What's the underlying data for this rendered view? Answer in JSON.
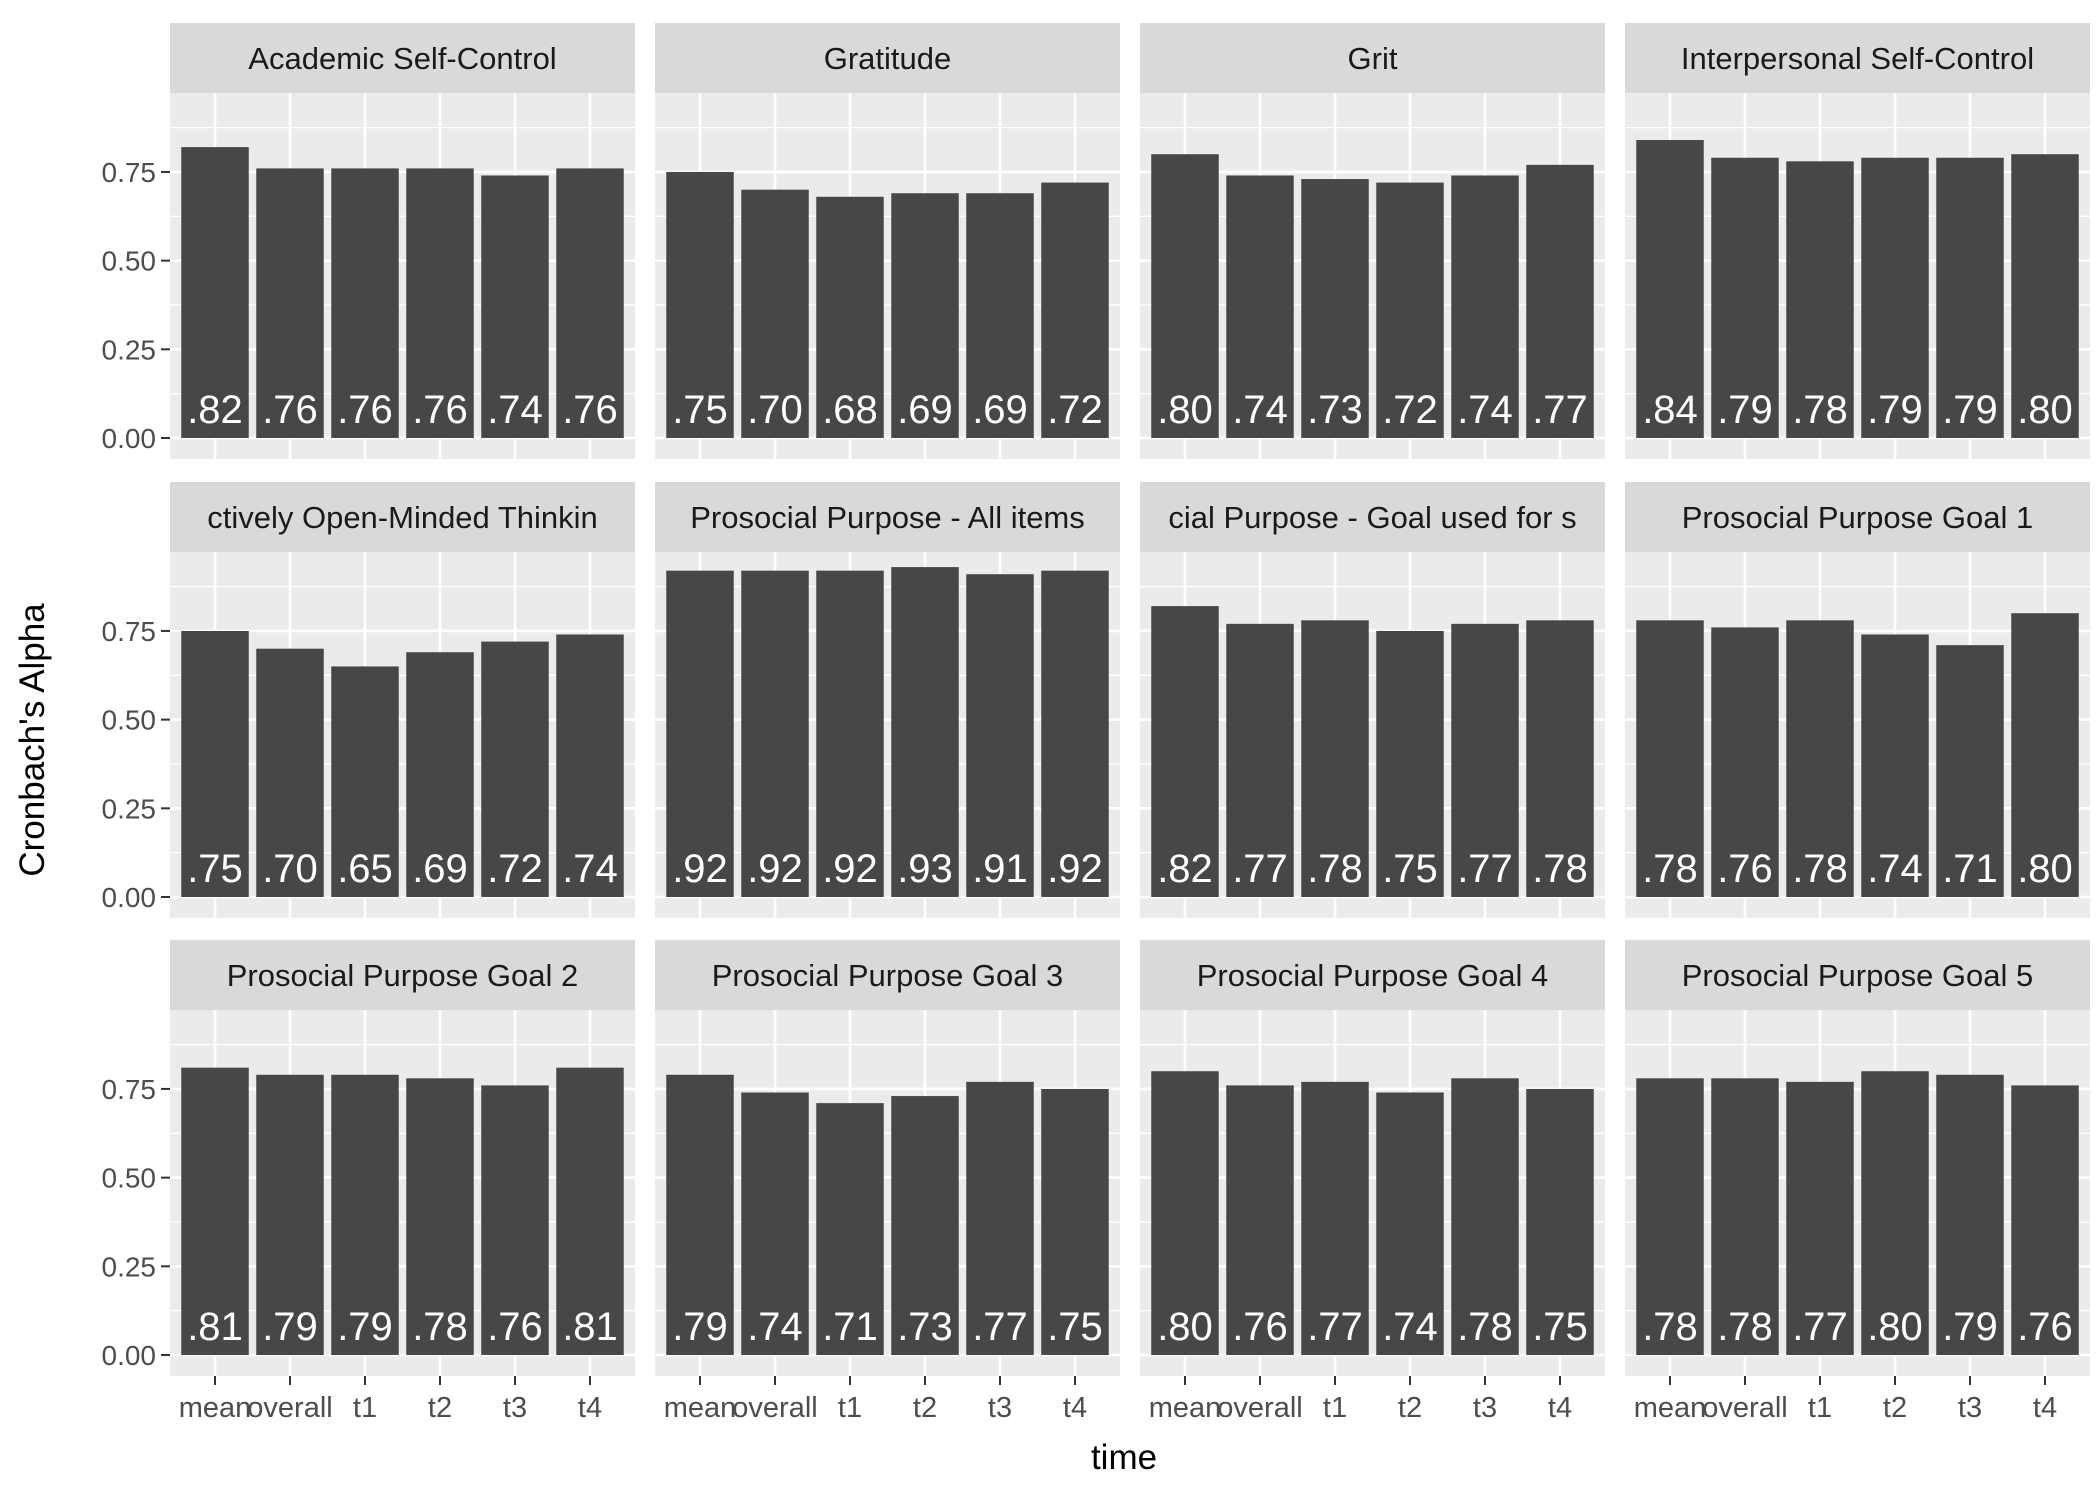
{
  "chart_data": {
    "type": "bar",
    "xlabel": "time",
    "ylabel": "Cronbach's Alpha",
    "ylim": [
      0,
      1
    ],
    "yticks": [
      "0.00",
      "0.25",
      "0.50",
      "0.75"
    ],
    "categories": [
      "mean",
      "overall",
      "t1",
      "t2",
      "t3",
      "t4"
    ],
    "grid": true,
    "colors": {
      "bar": "#474747",
      "panel_background": "#ebebeb",
      "strip_background": "#d9d9d9",
      "grid_line": "#ffffff",
      "bar_label": "#ffffff",
      "axis_text": "#4d4d4d",
      "title_text": "#1a1a1a"
    },
    "facets": [
      {
        "title": "Academic Self-Control",
        "values": [
          0.82,
          0.76,
          0.76,
          0.76,
          0.74,
          0.76
        ],
        "labels": [
          ".82",
          ".76",
          ".76",
          ".76",
          ".74",
          ".76"
        ]
      },
      {
        "title": "Gratitude",
        "values": [
          0.75,
          0.7,
          0.68,
          0.69,
          0.69,
          0.72
        ],
        "labels": [
          ".75",
          ".70",
          ".68",
          ".69",
          ".69",
          ".72"
        ]
      },
      {
        "title": "Grit",
        "values": [
          0.8,
          0.74,
          0.73,
          0.72,
          0.74,
          0.77
        ],
        "labels": [
          ".80",
          ".74",
          ".73",
          ".72",
          ".74",
          ".77"
        ]
      },
      {
        "title": "Interpersonal Self-Control",
        "values": [
          0.84,
          0.79,
          0.78,
          0.79,
          0.79,
          0.8
        ],
        "labels": [
          ".84",
          ".79",
          ".78",
          ".79",
          ".79",
          ".80"
        ]
      },
      {
        "title": "ctively Open-Minded Thinkin",
        "values": [
          0.75,
          0.7,
          0.65,
          0.69,
          0.72,
          0.74
        ],
        "labels": [
          ".75",
          ".70",
          ".65",
          ".69",
          ".72",
          ".74"
        ]
      },
      {
        "title": "Prosocial Purpose - All items",
        "values": [
          0.92,
          0.92,
          0.92,
          0.93,
          0.91,
          0.92
        ],
        "labels": [
          ".92",
          ".92",
          ".92",
          ".93",
          ".91",
          ".92"
        ]
      },
      {
        "title": "cial Purpose - Goal used for s",
        "values": [
          0.82,
          0.77,
          0.78,
          0.75,
          0.77,
          0.78
        ],
        "labels": [
          ".82",
          ".77",
          ".78",
          ".75",
          ".77",
          ".78"
        ]
      },
      {
        "title": "Prosocial Purpose Goal 1",
        "values": [
          0.78,
          0.76,
          0.78,
          0.74,
          0.71,
          0.8
        ],
        "labels": [
          ".78",
          ".76",
          ".78",
          ".74",
          ".71",
          ".80"
        ]
      },
      {
        "title": "Prosocial Purpose Goal 2",
        "values": [
          0.81,
          0.79,
          0.79,
          0.78,
          0.76,
          0.81
        ],
        "labels": [
          ".81",
          ".79",
          ".79",
          ".78",
          ".76",
          ".81"
        ]
      },
      {
        "title": "Prosocial Purpose Goal 3",
        "values": [
          0.79,
          0.74,
          0.71,
          0.73,
          0.77,
          0.75
        ],
        "labels": [
          ".79",
          ".74",
          ".71",
          ".73",
          ".77",
          ".75"
        ]
      },
      {
        "title": "Prosocial Purpose Goal 4",
        "values": [
          0.8,
          0.76,
          0.77,
          0.74,
          0.78,
          0.75
        ],
        "labels": [
          ".80",
          ".76",
          ".77",
          ".74",
          ".78",
          ".75"
        ]
      },
      {
        "title": "Prosocial Purpose Goal 5",
        "values": [
          0.78,
          0.78,
          0.77,
          0.8,
          0.79,
          0.76
        ],
        "labels": [
          ".78",
          ".78",
          ".77",
          ".80",
          ".79",
          ".76"
        ]
      }
    ]
  }
}
